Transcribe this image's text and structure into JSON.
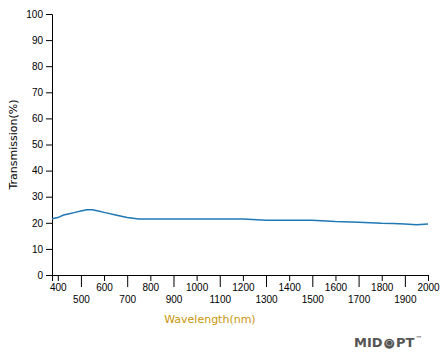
{
  "chart_data": {
    "type": "line",
    "xlabel": "Wavelength(nm)",
    "ylabel": "Transmission(%)",
    "annotations": [
      "MID",
      "●",
      "○",
      "PT",
      "™"
    ],
    "x": [
      375,
      400,
      425,
      450,
      475,
      500,
      525,
      550,
      575,
      600,
      650,
      700,
      750,
      800,
      900,
      1000,
      1100,
      1200,
      1300,
      1400,
      1500,
      1600,
      1700,
      1750,
      1800,
      1850,
      1900,
      1950,
      2000
    ],
    "values": [
      21.5,
      22.0,
      23.0,
      23.5,
      24.0,
      24.5,
      25.0,
      25.0,
      24.5,
      24.0,
      23.0,
      22.0,
      21.5,
      21.5,
      21.5,
      21.5,
      21.5,
      21.5,
      21.0,
      21.0,
      21.0,
      20.5,
      20.2,
      20.0,
      19.8,
      19.7,
      19.5,
      19.3,
      19.5
    ],
    "xlim": [
      375,
      2000
    ],
    "ylim": [
      0,
      100
    ],
    "xticks": [
      400,
      500,
      600,
      700,
      800,
      900,
      1000,
      1100,
      1200,
      1300,
      1400,
      1500,
      1600,
      1700,
      1800,
      1900,
      2000
    ],
    "yticks": [
      0,
      10,
      20,
      30,
      40,
      50,
      60,
      70,
      80,
      90,
      100
    ],
    "grid": false
  }
}
